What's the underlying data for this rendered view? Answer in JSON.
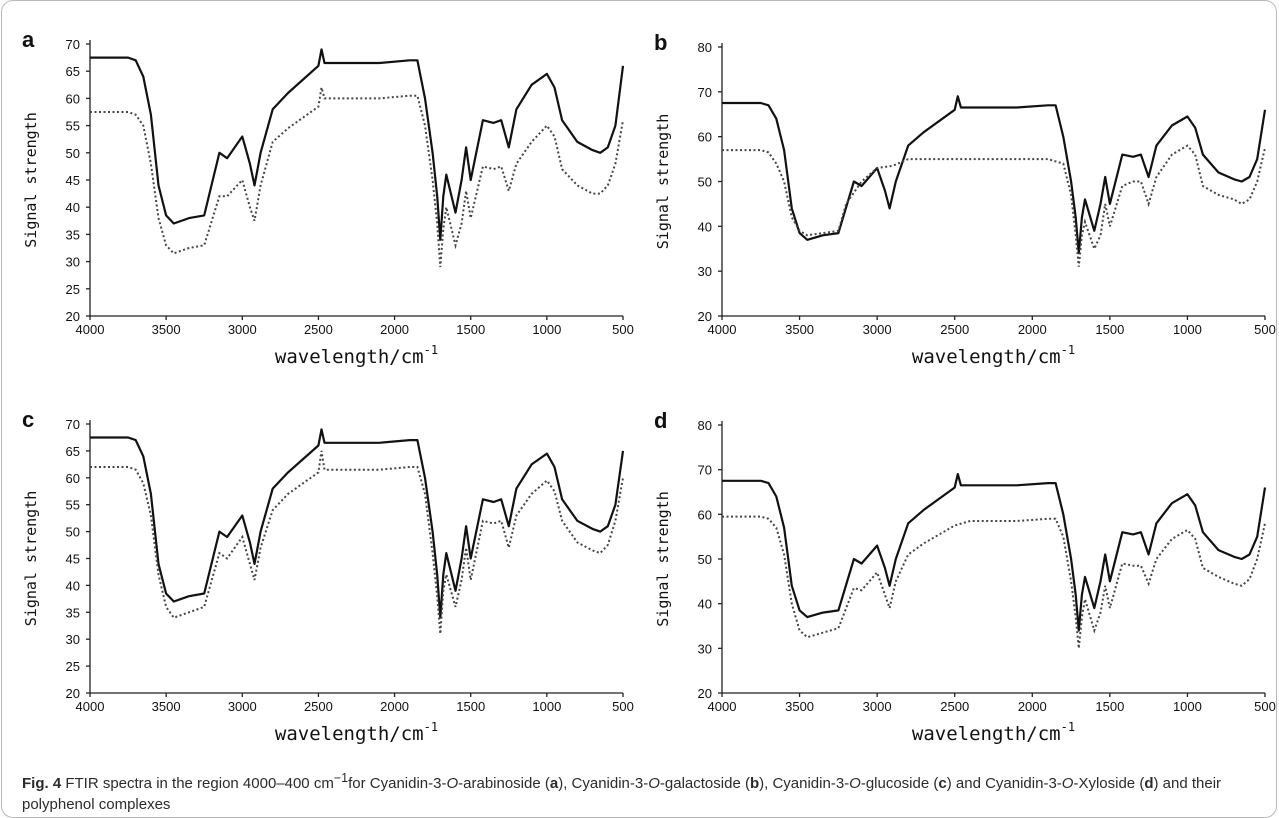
{
  "caption": {
    "label": "Fig. 4",
    "p1": "  FTIR spectra in the region 4000–400 cm",
    "sup": "−1",
    "p2": "for Cyanidin-3-",
    "o1": "O",
    "p3": "-arabinoside (",
    "b1": "a",
    "p4": "), Cyanidin-3-",
    "o2": "O",
    "p5": "-galactoside (",
    "b2": "b",
    "p6": "), Cyanidin-3-",
    "o3": "O",
    "p7": "-glucoside (",
    "b3": "c",
    "p8": ") and Cyanidin-3-",
    "o4": "O",
    "p9": "-Xyloside (",
    "b4": "d",
    "p10": ") and their polyphenol complexes"
  },
  "chart_data": [
    {
      "type": "line",
      "panel": "a",
      "xlabel": "wavelength/cm",
      "xlabel_sup": "-1",
      "ylabel": "Signal strength",
      "xlim": [
        4000,
        500
      ],
      "ylim": [
        20,
        70
      ],
      "xticks": [
        4000,
        3500,
        3000,
        2500,
        2000,
        1500,
        1000,
        500
      ],
      "yticks": [
        20,
        25,
        30,
        35,
        40,
        45,
        50,
        55,
        60,
        65,
        70
      ],
      "grid": false,
      "series": [
        {
          "style": "solid",
          "x": [
            4000,
            3750,
            3700,
            3650,
            3600,
            3550,
            3500,
            3450,
            3350,
            3250,
            3150,
            3100,
            3000,
            2950,
            2920,
            2880,
            2800,
            2700,
            2500,
            2480,
            2460,
            2400,
            2100,
            1900,
            1850,
            1800,
            1750,
            1720,
            1700,
            1680,
            1660,
            1600,
            1560,
            1530,
            1500,
            1420,
            1350,
            1300,
            1250,
            1200,
            1100,
            1000,
            950,
            900,
            800,
            700,
            650,
            600,
            550,
            500
          ],
          "y": [
            67.5,
            67.5,
            67,
            64,
            57,
            44,
            38.5,
            37,
            38,
            38.5,
            50,
            49,
            53,
            48,
            44,
            50,
            58,
            61,
            66,
            69,
            66.5,
            66.5,
            66.5,
            67,
            67,
            60,
            50,
            42,
            34,
            42,
            46,
            39,
            45,
            51,
            45,
            56,
            55.5,
            56,
            51,
            58,
            62.5,
            64.5,
            62,
            56,
            52,
            50.5,
            50,
            51,
            55,
            66
          ]
        },
        {
          "style": "dotted",
          "x": [
            4000,
            3750,
            3700,
            3650,
            3600,
            3550,
            3500,
            3450,
            3350,
            3250,
            3150,
            3100,
            3000,
            2950,
            2920,
            2880,
            2800,
            2700,
            2500,
            2480,
            2460,
            2400,
            2100,
            1900,
            1850,
            1800,
            1750,
            1720,
            1700,
            1680,
            1660,
            1600,
            1560,
            1530,
            1500,
            1420,
            1350,
            1300,
            1250,
            1200,
            1100,
            1000,
            950,
            900,
            800,
            700,
            650,
            600,
            550,
            500
          ],
          "y": [
            57.5,
            57.5,
            57,
            55,
            48,
            38,
            33,
            31.5,
            32.5,
            33,
            42,
            42,
            45,
            40,
            37.5,
            44,
            52,
            54.5,
            58.5,
            62,
            60,
            60,
            60,
            60.5,
            60.5,
            55,
            45,
            37,
            29,
            36,
            40,
            33,
            37,
            43,
            38,
            47.5,
            47,
            47.5,
            43,
            48,
            52,
            55,
            53,
            47,
            44,
            42.5,
            42.5,
            44,
            48,
            56
          ]
        }
      ]
    },
    {
      "type": "line",
      "panel": "b",
      "xlabel": "wavelength/cm",
      "xlabel_sup": "-1",
      "ylabel": "Signal strength",
      "xlim": [
        4000,
        500
      ],
      "ylim": [
        20,
        80
      ],
      "xticks": [
        4000,
        3500,
        3000,
        2500,
        2000,
        1500,
        1000,
        500
      ],
      "yticks": [
        20,
        30,
        40,
        50,
        60,
        70,
        80
      ],
      "grid": false,
      "series": [
        {
          "style": "solid",
          "x": [
            4000,
            3750,
            3700,
            3650,
            3600,
            3550,
            3500,
            3450,
            3350,
            3250,
            3150,
            3100,
            3000,
            2950,
            2920,
            2880,
            2800,
            2700,
            2500,
            2480,
            2460,
            2400,
            2100,
            1900,
            1850,
            1800,
            1750,
            1720,
            1700,
            1680,
            1660,
            1600,
            1560,
            1530,
            1500,
            1420,
            1350,
            1300,
            1250,
            1200,
            1100,
            1000,
            950,
            900,
            800,
            700,
            650,
            600,
            550,
            500
          ],
          "y": [
            67.5,
            67.5,
            67,
            64,
            57,
            44,
            38.5,
            37,
            38,
            38.5,
            50,
            49,
            53,
            48,
            44,
            50,
            58,
            61,
            66,
            69,
            66.5,
            66.5,
            66.5,
            67,
            67,
            60,
            50,
            42,
            34,
            42,
            46,
            39,
            45,
            51,
            45,
            56,
            55.5,
            56,
            51,
            58,
            62.5,
            64.5,
            62,
            56,
            52,
            50.5,
            50,
            51,
            55,
            66
          ]
        },
        {
          "style": "dotted",
          "x": [
            4000,
            3750,
            3700,
            3650,
            3600,
            3550,
            3500,
            3450,
            3350,
            3250,
            3200,
            3100,
            3000,
            2900,
            2800,
            2700,
            2500,
            2200,
            1900,
            1800,
            1750,
            1720,
            1700,
            1680,
            1660,
            1600,
            1560,
            1530,
            1500,
            1420,
            1350,
            1300,
            1250,
            1200,
            1100,
            1000,
            950,
            900,
            800,
            700,
            650,
            600,
            550,
            500
          ],
          "y": [
            57,
            57,
            56.5,
            54,
            50,
            42,
            39,
            38,
            38.5,
            39,
            45,
            50,
            53,
            53.5,
            55,
            55,
            55,
            55,
            55,
            54,
            47,
            38,
            31,
            38,
            41,
            35,
            38,
            45,
            40,
            49,
            50,
            50,
            45,
            51,
            56,
            58,
            56,
            49,
            47,
            46,
            45,
            46,
            50,
            57.5
          ]
        }
      ]
    },
    {
      "type": "line",
      "panel": "c",
      "xlabel": "wavelength/cm",
      "xlabel_sup": "-1",
      "ylabel": "Signal strength",
      "xlim": [
        4000,
        500
      ],
      "ylim": [
        20,
        70
      ],
      "xticks": [
        4000,
        3500,
        3000,
        2500,
        2000,
        1500,
        1000,
        500
      ],
      "yticks": [
        20,
        25,
        30,
        35,
        40,
        45,
        50,
        55,
        60,
        65,
        70
      ],
      "grid": false,
      "series": [
        {
          "style": "solid",
          "x": [
            4000,
            3750,
            3700,
            3650,
            3600,
            3550,
            3500,
            3450,
            3350,
            3250,
            3150,
            3100,
            3000,
            2950,
            2920,
            2880,
            2800,
            2700,
            2500,
            2480,
            2460,
            2400,
            2100,
            1900,
            1850,
            1800,
            1750,
            1720,
            1700,
            1680,
            1660,
            1600,
            1560,
            1530,
            1500,
            1420,
            1350,
            1300,
            1250,
            1200,
            1100,
            1000,
            950,
            900,
            800,
            700,
            650,
            600,
            550,
            500
          ],
          "y": [
            67.5,
            67.5,
            67,
            64,
            57,
            44,
            38.5,
            37,
            38,
            38.5,
            50,
            49,
            53,
            48,
            44,
            50,
            58,
            61,
            66,
            69,
            66.5,
            66.5,
            66.5,
            67,
            67,
            60,
            50,
            42,
            34,
            42,
            46,
            39,
            45,
            51,
            45,
            56,
            55.5,
            56,
            51,
            58,
            62.5,
            64.5,
            62,
            56,
            52,
            50.5,
            50,
            51,
            55,
            65
          ]
        },
        {
          "style": "dotted",
          "x": [
            4000,
            3750,
            3700,
            3650,
            3600,
            3550,
            3500,
            3450,
            3350,
            3250,
            3150,
            3100,
            3000,
            2950,
            2920,
            2880,
            2800,
            2700,
            2500,
            2480,
            2460,
            2400,
            2100,
            1900,
            1850,
            1800,
            1750,
            1720,
            1700,
            1680,
            1660,
            1600,
            1560,
            1530,
            1500,
            1420,
            1350,
            1300,
            1250,
            1200,
            1100,
            1000,
            950,
            900,
            800,
            700,
            650,
            600,
            550,
            500
          ],
          "y": [
            62,
            62,
            61.5,
            59,
            53,
            42,
            36,
            34,
            35,
            36,
            46,
            45,
            49,
            44,
            41,
            47,
            54,
            57,
            61,
            65,
            61.5,
            61.5,
            61.5,
            62,
            62,
            57,
            46,
            38,
            31,
            39,
            42,
            36,
            41,
            47,
            41,
            52,
            51.5,
            52,
            47,
            53,
            57,
            59.5,
            57.5,
            52,
            48,
            46.5,
            46,
            47.5,
            52,
            60
          ]
        }
      ]
    },
    {
      "type": "line",
      "panel": "d",
      "xlabel": "wavelength/cm",
      "xlabel_sup": "-1",
      "ylabel": "Signal strength",
      "xlim": [
        4000,
        500
      ],
      "ylim": [
        20,
        80
      ],
      "xticks": [
        4000,
        3500,
        3000,
        2500,
        2000,
        1500,
        1000,
        500
      ],
      "yticks": [
        20,
        30,
        40,
        50,
        60,
        70,
        80
      ],
      "grid": false,
      "series": [
        {
          "style": "solid",
          "x": [
            4000,
            3750,
            3700,
            3650,
            3600,
            3550,
            3500,
            3450,
            3350,
            3250,
            3150,
            3100,
            3000,
            2950,
            2920,
            2880,
            2800,
            2700,
            2500,
            2480,
            2460,
            2400,
            2100,
            1900,
            1850,
            1800,
            1750,
            1720,
            1700,
            1680,
            1660,
            1600,
            1560,
            1530,
            1500,
            1420,
            1350,
            1300,
            1250,
            1200,
            1100,
            1000,
            950,
            900,
            800,
            700,
            650,
            600,
            550,
            500
          ],
          "y": [
            67.5,
            67.5,
            67,
            64,
            57,
            44,
            38.5,
            37,
            38,
            38.5,
            50,
            49,
            53,
            48,
            44,
            50,
            58,
            61,
            66,
            69,
            66.5,
            66.5,
            66.5,
            67,
            67,
            60,
            50,
            42,
            34,
            42,
            46,
            39,
            45,
            51,
            45,
            56,
            55.5,
            56,
            51,
            58,
            62.5,
            64.5,
            62,
            56,
            52,
            50.5,
            50,
            51,
            55,
            66
          ]
        },
        {
          "style": "dotted",
          "x": [
            4000,
            3750,
            3700,
            3650,
            3600,
            3550,
            3500,
            3450,
            3350,
            3250,
            3150,
            3100,
            3000,
            2950,
            2920,
            2880,
            2800,
            2700,
            2500,
            2400,
            2100,
            1900,
            1850,
            1800,
            1750,
            1720,
            1700,
            1680,
            1660,
            1600,
            1560,
            1530,
            1500,
            1420,
            1350,
            1300,
            1250,
            1200,
            1100,
            1000,
            950,
            900,
            800,
            700,
            650,
            600,
            550,
            500
          ],
          "y": [
            59.5,
            59.5,
            59,
            57,
            51,
            40,
            34,
            32.5,
            33.5,
            34.5,
            43.5,
            43,
            47,
            42,
            39,
            45,
            51,
            53.5,
            57.5,
            58.5,
            58.5,
            59,
            59,
            55,
            45,
            37,
            30,
            37,
            41,
            34,
            38,
            44,
            39,
            49,
            48.5,
            48.5,
            44.5,
            50,
            54.5,
            56.5,
            54.5,
            48,
            46,
            44.5,
            44,
            45.5,
            50,
            58
          ]
        }
      ]
    }
  ]
}
